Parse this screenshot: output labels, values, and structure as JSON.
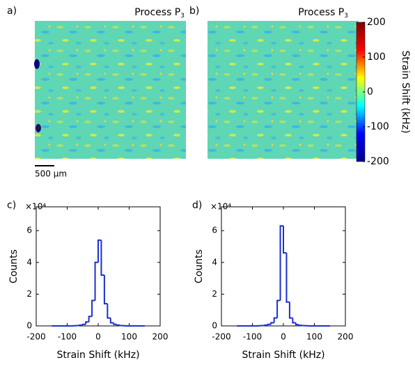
{
  "chart_data": [
    {
      "type": "heatmap",
      "panel_label": "a)",
      "title": "Process P",
      "title_subscript": "3",
      "scale_bar": "500 µm"
    },
    {
      "type": "heatmap",
      "panel_label": "b)",
      "title": "Process P",
      "title_subscript": "3"
    },
    {
      "type": "colorbar",
      "label": "Strain Shift (kHz)",
      "lim": [
        -200,
        200
      ],
      "ticks": [
        -200,
        -100,
        0,
        100,
        200
      ],
      "colors": [
        "#00008f",
        "#0000ff",
        "#00ffff",
        "#ffff00",
        "#ff0000",
        "#800000"
      ]
    },
    {
      "type": "histogram",
      "panel_label": "c)",
      "y_multiplier": "×10⁴",
      "xlabel": "Strain Shift (kHz)",
      "ylabel": "Counts",
      "xlim": [
        -200,
        200
      ],
      "xticks": [
        -200,
        -100,
        0,
        100,
        200
      ],
      "ylim": [
        0,
        7.5
      ],
      "yticks": [
        0,
        2,
        4,
        6
      ],
      "color": "#1a2fd0",
      "bins": [
        -150,
        -140,
        -130,
        -120,
        -110,
        -100,
        -90,
        -80,
        -70,
        -60,
        -50,
        -40,
        -30,
        -20,
        -10,
        0,
        10,
        20,
        30,
        40,
        50,
        60,
        70,
        80,
        90,
        100,
        110,
        120,
        130,
        140,
        150
      ],
      "counts": [
        0,
        0,
        0,
        0,
        0,
        0,
        0,
        0.01,
        0.02,
        0.05,
        0.1,
        0.25,
        0.6,
        1.6,
        4.0,
        5.4,
        3.2,
        1.4,
        0.5,
        0.2,
        0.1,
        0.05,
        0.02,
        0.01,
        0,
        0,
        0,
        0,
        0,
        0
      ]
    },
    {
      "type": "histogram",
      "panel_label": "d)",
      "y_multiplier": "×10⁴",
      "xlabel": "Strain Shift (kHz)",
      "ylabel": "Counts",
      "xlim": [
        -200,
        200
      ],
      "xticks": [
        -200,
        -100,
        0,
        100,
        200
      ],
      "ylim": [
        0,
        7.5
      ],
      "yticks": [
        0,
        2,
        4,
        6
      ],
      "color": "#1a2fd0",
      "bins": [
        -150,
        -140,
        -130,
        -120,
        -110,
        -100,
        -90,
        -80,
        -70,
        -60,
        -50,
        -40,
        -30,
        -20,
        -10,
        0,
        10,
        20,
        30,
        40,
        50,
        60,
        70,
        80,
        90,
        100,
        110,
        120,
        130,
        140,
        150
      ],
      "counts": [
        0,
        0,
        0,
        0,
        0,
        0,
        0,
        0.01,
        0.02,
        0.05,
        0.1,
        0.2,
        0.5,
        1.6,
        6.3,
        4.6,
        1.5,
        0.5,
        0.2,
        0.08,
        0.04,
        0.02,
        0.01,
        0,
        0,
        0,
        0,
        0,
        0,
        0
      ]
    }
  ]
}
